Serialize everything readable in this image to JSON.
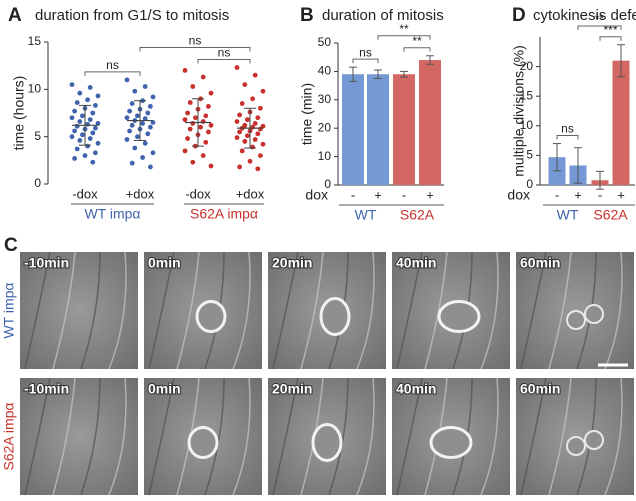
{
  "chart_data": [
    {
      "type": "scatter",
      "label": "A",
      "title": "duration from G1/S to mitosis",
      "y_label": "time (hours)",
      "ylim": [
        0,
        15
      ],
      "yticks": [
        0,
        5,
        10,
        15
      ],
      "groups": [
        {
          "name": "WT impα",
          "color": "#3f63ad",
          "categories": [
            "-dox",
            "+dox"
          ],
          "points": [
            [
              10.5,
              10.2,
              9.6,
              9.3,
              8.9,
              8.6,
              8.3,
              8.0,
              7.7,
              7.5,
              7.2,
              7.0,
              6.8,
              6.6,
              6.4,
              6.3,
              6.1,
              5.9,
              5.8,
              5.6,
              5.4,
              5.2,
              5.0,
              4.8,
              4.6,
              4.3,
              4.0,
              3.7,
              3.3,
              3.0,
              2.7,
              2.3
            ],
            [
              11.0,
              10.3,
              9.8,
              9.2,
              8.8,
              8.5,
              8.2,
              7.9,
              7.7,
              7.5,
              7.2,
              7.0,
              6.9,
              6.7,
              6.5,
              6.4,
              6.2,
              6.0,
              5.8,
              5.6,
              5.3,
              5.0,
              4.7,
              4.3,
              3.8,
              3.3,
              2.8,
              2.2,
              1.8
            ]
          ],
          "mean": [
            6.2,
            6.7
          ],
          "sd": [
            2.1,
            2.1
          ]
        },
        {
          "name": "S62A impα",
          "color": "#c8302c",
          "categories": [
            "-dox",
            "+dox"
          ],
          "points": [
            [
              12.0,
              11.3,
              10.3,
              9.6,
              9.0,
              8.6,
              8.2,
              7.9,
              7.5,
              7.2,
              7.0,
              6.8,
              6.6,
              6.4,
              6.2,
              6.0,
              5.8,
              5.5,
              5.2,
              4.8,
              4.4,
              4.0,
              3.5,
              3.0,
              2.3,
              1.9
            ],
            [
              12.3,
              11.5,
              10.5,
              9.8,
              9.0,
              8.5,
              8.0,
              7.6,
              7.3,
              7.0,
              6.8,
              6.6,
              6.4,
              6.2,
              6.1,
              6.0,
              5.9,
              5.8,
              5.6,
              5.5,
              5.3,
              5.1,
              4.9,
              4.7,
              4.5,
              4.2,
              3.9,
              3.5,
              3.0,
              2.4,
              1.8,
              1.6
            ]
          ],
          "mean": [
            6.5,
            5.9
          ],
          "sd": [
            2.5,
            2.1
          ]
        }
      ],
      "annotations": [
        {
          "text": "ns",
          "from": 0,
          "to": 1
        },
        {
          "text": "ns",
          "from": 1,
          "to": 3
        },
        {
          "text": "ns",
          "from": 2,
          "to": 3
        }
      ]
    },
    {
      "type": "bar",
      "label": "B",
      "title": "duration of mitosis",
      "y_label": "time (min)",
      "x_label": "dox",
      "ylim": [
        0,
        50
      ],
      "yticks": [
        0,
        10,
        20,
        30,
        40,
        50
      ],
      "groups": [
        {
          "name": "WT",
          "color": "#7499d4",
          "label_color": "#3f63ad",
          "categories": [
            "-",
            "+"
          ],
          "values": [
            39,
            39
          ],
          "errors": [
            2.5,
            1.5
          ]
        },
        {
          "name": "S62A",
          "color": "#d36762",
          "label_color": "#c8302c",
          "categories": [
            "-",
            "+"
          ],
          "values": [
            39,
            44
          ],
          "errors": [
            1,
            1.5
          ]
        }
      ],
      "annotations": [
        {
          "text": "ns",
          "from": 0,
          "to": 1
        },
        {
          "text": "**",
          "from": 1,
          "to": 3
        },
        {
          "text": "**",
          "from": 2,
          "to": 3
        }
      ]
    },
    {
      "type": "bar",
      "label": "D",
      "title": "cytokinesis defects",
      "y_label": "multiple divisions (%)",
      "x_label": "dox",
      "ylim": [
        0,
        25
      ],
      "yticks": [
        0,
        5,
        10,
        15,
        20
      ],
      "groups": [
        {
          "name": "WT",
          "color": "#7499d4",
          "label_color": "#3f63ad",
          "categories": [
            "-",
            "+"
          ],
          "values": [
            4.7,
            3.3
          ],
          "errors": [
            2.3,
            3
          ]
        },
        {
          "name": "S62A",
          "color": "#d36762",
          "label_color": "#c8302c",
          "categories": [
            "-",
            "+"
          ],
          "values": [
            0.8,
            21
          ],
          "errors": [
            1.5,
            2.7
          ]
        }
      ],
      "annotations": [
        {
          "text": "ns",
          "from": 0,
          "to": 1
        },
        {
          "text": "**",
          "from": 1,
          "to": 3
        },
        {
          "text": "***",
          "from": 2,
          "to": 3
        }
      ]
    }
  ],
  "panel_c": {
    "label": "C",
    "rows": [
      {
        "label": "WT impα",
        "color": "#3f63ad",
        "frames": [
          "-10min",
          "0min",
          "20min",
          "40min",
          "60min"
        ]
      },
      {
        "label": "S62A impα",
        "color": "#c8302c",
        "frames": [
          "-10min",
          "0min",
          "20min",
          "40min",
          "60min"
        ]
      }
    ]
  }
}
